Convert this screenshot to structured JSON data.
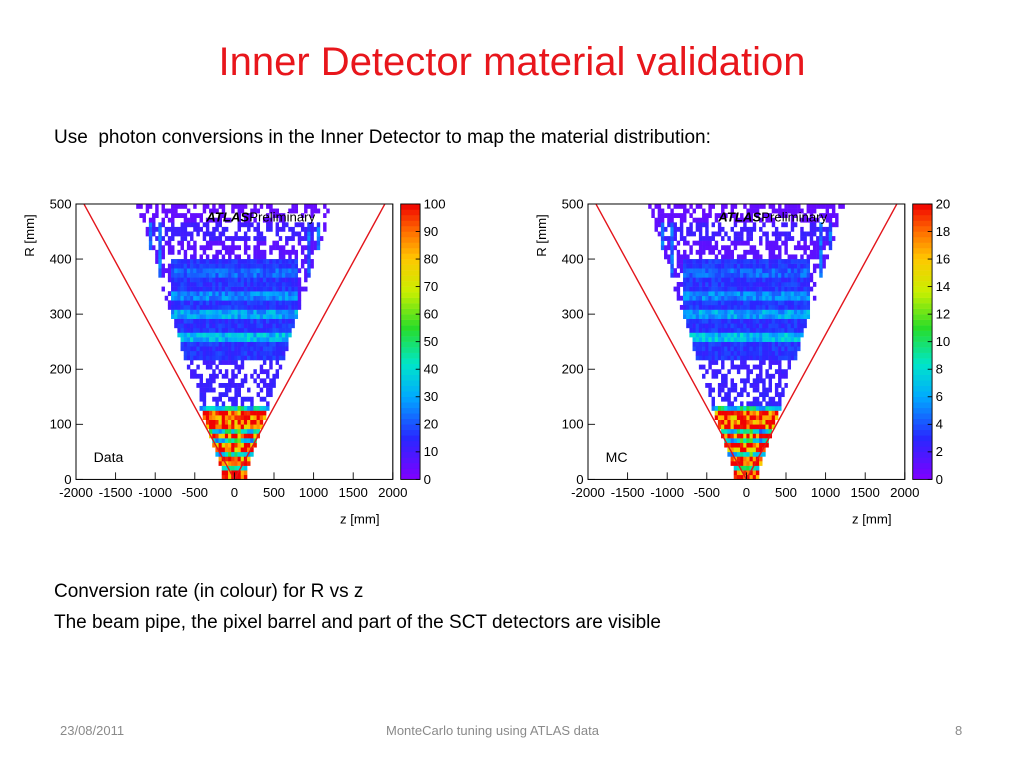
{
  "slide": {
    "title": "Inner Detector material validation",
    "intro": "Use  photon conversions in the Inner Detector to map the material distribution:",
    "caption_lines": [
      "Conversion rate (in colour) for R vs z",
      "The beam pipe, the pixel barrel and part of the SCT detectors are visible"
    ]
  },
  "footer": {
    "date": "23/08/2011",
    "center": "MonteCarlo tuning using  ATLAS data",
    "page": "8"
  },
  "chart_data": [
    {
      "type": "heatmap",
      "label": "Data",
      "banner_bold": "ATLAS",
      "banner_rest": "Preliminary",
      "xlabel": "z [mm]",
      "ylabel": "R [mm]",
      "xlim": [
        -2000,
        2000
      ],
      "ylim": [
        0,
        500
      ],
      "x_ticks": [
        "-2000",
        "-1500",
        "-1000",
        "-500",
        "0",
        "500",
        "1000",
        "1500",
        "2000"
      ],
      "y_ticks": [
        "0",
        "100",
        "200",
        "300",
        "400",
        "500"
      ],
      "z_range": [
        0,
        100
      ],
      "colorbar_ticks": [
        "0",
        "10",
        "20",
        "30",
        "40",
        "50",
        "60",
        "70",
        "80",
        "90",
        "100"
      ],
      "guide_lines": [
        {
          "x": [
            -1900,
            0
          ],
          "y": [
            500,
            0
          ]
        },
        {
          "x": [
            1900,
            0
          ],
          "y": [
            500,
            0
          ]
        }
      ]
    },
    {
      "type": "heatmap",
      "label": "MC",
      "banner_bold": "ATLAS",
      "banner_rest": "Preliminary",
      "xlabel": "z [mm]",
      "ylabel": "R [mm]",
      "xlim": [
        -2000,
        2000
      ],
      "ylim": [
        0,
        500
      ],
      "x_ticks": [
        "-2000",
        "-1500",
        "-1000",
        "-500",
        "0",
        "500",
        "1000",
        "1500",
        "2000"
      ],
      "y_ticks": [
        "0",
        "100",
        "200",
        "300",
        "400",
        "500"
      ],
      "z_range": [
        0,
        20
      ],
      "colorbar_ticks": [
        "0",
        "2",
        "4",
        "6",
        "8",
        "10",
        "12",
        "14",
        "16",
        "18",
        "20"
      ],
      "guide_lines": [
        {
          "x": [
            -1900,
            0
          ],
          "y": [
            500,
            0
          ]
        },
        {
          "x": [
            1900,
            0
          ],
          "y": [
            500,
            0
          ]
        }
      ]
    }
  ]
}
